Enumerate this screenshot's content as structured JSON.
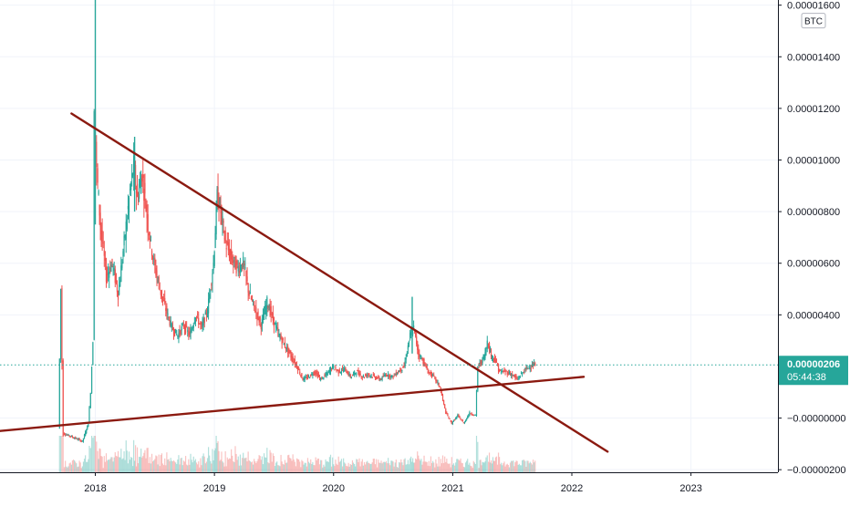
{
  "chart_data": {
    "type": "candlestick",
    "currency_label": "BTC",
    "y_axis": {
      "ticks": [
        {
          "value": 1.6e-05,
          "label": "0.00001600"
        },
        {
          "value": 1.4e-05,
          "label": "0.00001400"
        },
        {
          "value": 1.2e-05,
          "label": "0.00001200"
        },
        {
          "value": 1e-05,
          "label": "0.00001000"
        },
        {
          "value": 8e-06,
          "label": "0.00000800"
        },
        {
          "value": 6e-06,
          "label": "0.00000600"
        },
        {
          "value": 4e-06,
          "label": "0.00000400"
        },
        {
          "value": 0.0,
          "label": "−0.00000000"
        },
        {
          "value": -2e-06,
          "label": "−0.00000200"
        }
      ],
      "range": [
        -2.1e-06,
        1.62e-05
      ]
    },
    "x_axis": {
      "ticks": [
        {
          "value": 2018.0,
          "label": "2018"
        },
        {
          "value": 2019.0,
          "label": "2019"
        },
        {
          "value": 2020.0,
          "label": "2020"
        },
        {
          "value": 2021.0,
          "label": "2021"
        },
        {
          "value": 2022.0,
          "label": "2022"
        },
        {
          "value": 2023.0,
          "label": "2023"
        }
      ],
      "range": [
        2017.2,
        2023.73
      ]
    },
    "last_price": {
      "label": "0.00000206",
      "countdown": "05:44:38",
      "value": 2.06e-06,
      "color": "#26a69a"
    },
    "colors": {
      "up": "#26a69a",
      "down": "#ef5350",
      "trendline": "#8b1a10",
      "grid": "#f0f3fa"
    },
    "trendlines": [
      {
        "name": "descending-resistance",
        "x1": 2017.8,
        "y1": 1.18e-05,
        "x2": 2022.3,
        "y2": -1.3e-06
      },
      {
        "name": "ascending-support",
        "x1": 2017.2,
        "y1": -5e-07,
        "x2": 2022.1,
        "y2": 1.6e-06
      }
    ],
    "price_path": [
      [
        2017.7,
        -4e-07
      ],
      [
        2017.72,
        5e-06
      ],
      [
        2017.74,
        -6e-07
      ],
      [
        2017.8,
        -7e-07
      ],
      [
        2017.9,
        -9e-07
      ],
      [
        2017.95,
        -2e-07
      ],
      [
        2017.97,
        1e-06
      ],
      [
        2017.99,
        3e-06
      ],
      [
        2018.0,
        1.2e-05
      ],
      [
        2018.02,
        9.5e-06
      ],
      [
        2018.05,
        7.5e-06
      ],
      [
        2018.1,
        5.5e-06
      ],
      [
        2018.15,
        6e-06
      ],
      [
        2018.2,
        4.8e-06
      ],
      [
        2018.25,
        6.8e-06
      ],
      [
        2018.3,
        8.8e-06
      ],
      [
        2018.33,
        9.8e-06
      ],
      [
        2018.36,
        8.5e-06
      ],
      [
        2018.4,
        9.5e-06
      ],
      [
        2018.45,
        7.5e-06
      ],
      [
        2018.5,
        6e-06
      ],
      [
        2018.55,
        5e-06
      ],
      [
        2018.6,
        4.2e-06
      ],
      [
        2018.65,
        3.5e-06
      ],
      [
        2018.7,
        3.2e-06
      ],
      [
        2018.75,
        3.6e-06
      ],
      [
        2018.8,
        3.2e-06
      ],
      [
        2018.85,
        4e-06
      ],
      [
        2018.9,
        3.5e-06
      ],
      [
        2018.95,
        4.2e-06
      ],
      [
        2019.0,
        6e-06
      ],
      [
        2019.03,
        8.6e-06
      ],
      [
        2019.06,
        8e-06
      ],
      [
        2019.1,
        6.8e-06
      ],
      [
        2019.15,
        6.2e-06
      ],
      [
        2019.2,
        5.8e-06
      ],
      [
        2019.25,
        6e-06
      ],
      [
        2019.3,
        4.8e-06
      ],
      [
        2019.35,
        4.2e-06
      ],
      [
        2019.4,
        3.6e-06
      ],
      [
        2019.45,
        4.5e-06
      ],
      [
        2019.5,
        3.8e-06
      ],
      [
        2019.55,
        3.2e-06
      ],
      [
        2019.6,
        2.8e-06
      ],
      [
        2019.65,
        2.4e-06
      ],
      [
        2019.7,
        2e-06
      ],
      [
        2019.75,
        1.5e-06
      ],
      [
        2019.8,
        1.6e-06
      ],
      [
        2019.85,
        1.8e-06
      ],
      [
        2019.9,
        1.5e-06
      ],
      [
        2019.95,
        1.7e-06
      ],
      [
        2020.0,
        2e-06
      ],
      [
        2020.05,
        1.8e-06
      ],
      [
        2020.1,
        1.9e-06
      ],
      [
        2020.15,
        1.6e-06
      ],
      [
        2020.2,
        1.8e-06
      ],
      [
        2020.25,
        1.6e-06
      ],
      [
        2020.3,
        1.7e-06
      ],
      [
        2020.35,
        1.6e-06
      ],
      [
        2020.4,
        1.5e-06
      ],
      [
        2020.45,
        1.7e-06
      ],
      [
        2020.5,
        1.6e-06
      ],
      [
        2020.55,
        1.8e-06
      ],
      [
        2020.6,
        2e-06
      ],
      [
        2020.65,
        3.2e-06
      ],
      [
        2020.68,
        3.5e-06
      ],
      [
        2020.72,
        2.5e-06
      ],
      [
        2020.76,
        2.2e-06
      ],
      [
        2020.8,
        1.8e-06
      ],
      [
        2020.85,
        1.6e-06
      ],
      [
        2020.9,
        1.2e-06
      ],
      [
        2020.95,
        2e-07
      ],
      [
        2021.0,
        -2e-07
      ],
      [
        2021.05,
        1e-07
      ],
      [
        2021.1,
        -2e-07
      ],
      [
        2021.15,
        2e-07
      ],
      [
        2021.2,
        1e-07
      ],
      [
        2021.22,
        2e-06
      ],
      [
        2021.25,
        2.2e-06
      ],
      [
        2021.28,
        2.5e-06
      ],
      [
        2021.3,
        3e-06
      ],
      [
        2021.33,
        2.4e-06
      ],
      [
        2021.36,
        2.3e-06
      ],
      [
        2021.4,
        1.8e-06
      ],
      [
        2021.45,
        1.8e-06
      ],
      [
        2021.5,
        1.7e-06
      ],
      [
        2021.55,
        1.5e-06
      ],
      [
        2021.6,
        1.8e-06
      ],
      [
        2021.65,
        2e-06
      ],
      [
        2021.7,
        2.06e-06
      ]
    ]
  }
}
